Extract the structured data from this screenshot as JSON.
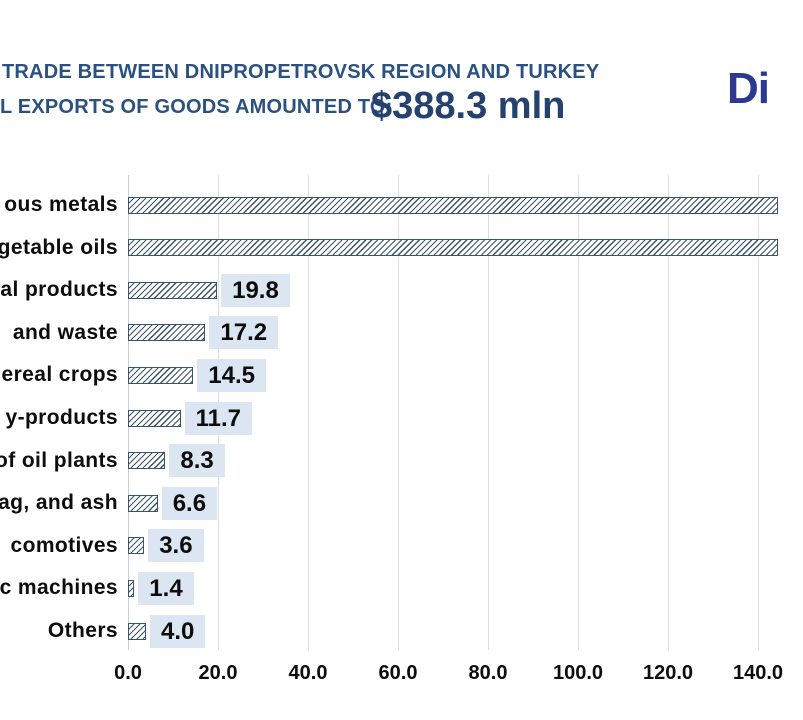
{
  "header": {
    "title_line": "TRADE BETWEEN DNIPROPETROVSK REGION AND TURKEY",
    "subtitle_fragment": "L EXPORTS OF GOODS AMOUNTED TO:",
    "amount": "$388.3 mln",
    "logo_fragment": "Di"
  },
  "colors": {
    "header_text": "#2b5180",
    "amount_text": "#25426e",
    "logo": "#2b3990",
    "bar_line": "#3a556a",
    "value_box_bg": "#dce6f2",
    "gridline": "#dadfe6",
    "axis_gridline": "#c7ced8",
    "label_text": "#0d0d0d",
    "background": "#ffffff"
  },
  "chart_data": {
    "type": "bar",
    "orientation": "horizontal",
    "title": "TRADE BETWEEN DNIPROPETROVSK REGION AND TURKEY",
    "units": "$ mln",
    "note": "Image is cropped: category labels are cut off at the left edge, and the first two bars extend beyond the right edge (values not visible, > ~142).",
    "categories": [
      "ous metals",
      "getable oils",
      "al products",
      "and waste",
      "ereal crops",
      "y-products",
      "of oil plants",
      "ag, and ash",
      "comotives",
      "c machines",
      "Others"
    ],
    "values": [
      null,
      null,
      19.8,
      17.2,
      14.5,
      11.7,
      8.3,
      6.6,
      3.6,
      1.4,
      4.0
    ],
    "value_labels": [
      "",
      "",
      "19.8",
      "17.2",
      "14.5",
      "11.7",
      "8.3",
      "6.6",
      "3.6",
      "1.4",
      "4.0"
    ],
    "x_ticks": [
      0,
      20,
      40,
      60,
      80,
      100,
      120,
      140
    ],
    "x_tick_labels": [
      "0.0",
      "20.0",
      "40.0",
      "60.0",
      "80.0",
      "100.0",
      "120.0",
      "140.0"
    ],
    "xlim": [
      0,
      142
    ],
    "grid": true,
    "legend": false
  }
}
